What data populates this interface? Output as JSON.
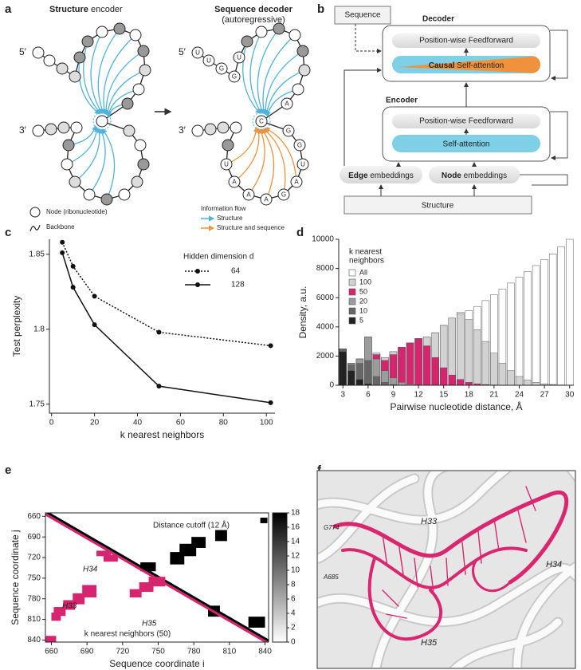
{
  "panel_labels": [
    "a",
    "b",
    "c",
    "d",
    "e",
    "f"
  ],
  "panel_a": {
    "encoder_title": {
      "bold": "Structure",
      "rest": " encoder"
    },
    "decoder_title": "Sequence decoder",
    "decoder_subtitle": "(autoregressive)",
    "five_prime": "5′",
    "three_prime": "3′",
    "nucleotides": [
      "U",
      "U",
      "G",
      "G",
      "U",
      "A",
      "C",
      "G",
      "G",
      "U",
      "A",
      "G",
      "A",
      "A",
      "A",
      "U"
    ],
    "legend": {
      "node": "Node (ribonucleotide)",
      "backbone": "Backbone",
      "flow_title": "Information flow",
      "flow_structure": "Structure",
      "flow_both": "Structure and sequence"
    }
  },
  "panel_b": {
    "sequence": "Sequence",
    "decoder": "Decoder",
    "decoder_ff": "Position-wise Feedforward",
    "decoder_attention": {
      "bold": "Causal",
      "rest": " Self-attention"
    },
    "encoder": "Encoder",
    "encoder_ff": "Position-wise Feedforward",
    "encoder_attention": "Self-attention",
    "edge": {
      "bold": "Edge",
      "rest": " embeddings"
    },
    "node": {
      "bold": "Node",
      "rest": " embeddings"
    },
    "structure": "Structure"
  },
  "chart_data": [
    {
      "type": "line",
      "xlabel": "k nearest neighbors",
      "ylabel": "Test perplexity",
      "legend_title": "Hidden dimension d",
      "x": [
        5,
        10,
        20,
        50,
        102
      ],
      "series": [
        {
          "name": "64",
          "color": "#111111",
          "linestyle": "dotted",
          "values": [
            1.858,
            1.842,
            1.822,
            1.798,
            1.789
          ]
        },
        {
          "name": "128",
          "color": "#111111",
          "linestyle": "solid",
          "values": [
            1.851,
            1.828,
            1.803,
            1.762,
            1.751
          ]
        }
      ],
      "xlim": [
        -1,
        104
      ],
      "ylim": [
        1.744,
        1.86
      ],
      "xticks": [
        0,
        20,
        40,
        60,
        80,
        100
      ],
      "yticks": [
        1.75,
        1.8,
        1.85
      ]
    },
    {
      "type": "histogram",
      "xlabel": "Pairwise nucleotide distance, Å",
      "ylabel": "Density, a.u.",
      "legend_title": [
        "k nearest",
        "neighbors"
      ],
      "bins": [
        2.5,
        3.5,
        4.5,
        5.5,
        6.5,
        7.5,
        8.5,
        9.5,
        10.5,
        11.5,
        12.5,
        13.5,
        14.5,
        15.5,
        16.5,
        17.5,
        18.5,
        19.5,
        20.5,
        21.5,
        22.5,
        23.5,
        24.5,
        25.5,
        26.5,
        27.5,
        28.5,
        29.5,
        30.5
      ],
      "series": [
        {
          "name": "All",
          "color": "#ffffff",
          "values": [
            2500,
            1500,
            1800,
            3300,
            2200,
            1900,
            2300,
            2600,
            2900,
            3200,
            3300,
            3600,
            4100,
            4600,
            5000,
            5100,
            5400,
            5800,
            6200,
            6600,
            7000,
            7400,
            7800,
            8200,
            8600,
            9000,
            9500,
            10000
          ]
        },
        {
          "name": "100",
          "color": "#d2d2d2",
          "values": [
            2500,
            1500,
            1800,
            3300,
            2200,
            1900,
            2300,
            2600,
            2900,
            3200,
            3300,
            3600,
            4100,
            4600,
            4900,
            4500,
            3800,
            3000,
            2200,
            1500,
            1000,
            600,
            350,
            200,
            100,
            50,
            20,
            10
          ]
        },
        {
          "name": "50",
          "color": "#d6246e",
          "values": [
            2500,
            1500,
            1800,
            3300,
            2100,
            1700,
            2100,
            2600,
            2900,
            3200,
            2700,
            1900,
            1200,
            700,
            400,
            200,
            100,
            50,
            20,
            0,
            0,
            0,
            0,
            0,
            0,
            0,
            0,
            0
          ]
        },
        {
          "name": "20",
          "color": "#9c9c9c",
          "values": [
            2500,
            1500,
            1800,
            3300,
            1800,
            1000,
            500,
            200,
            80,
            30,
            0,
            0,
            0,
            0,
            0,
            0,
            0,
            0,
            0,
            0,
            0,
            0,
            0,
            0,
            0,
            0,
            0,
            0
          ]
        },
        {
          "name": "10",
          "color": "#666666",
          "values": [
            2500,
            1400,
            1500,
            1700,
            600,
            200,
            50,
            0,
            0,
            0,
            0,
            0,
            0,
            0,
            0,
            0,
            0,
            0,
            0,
            0,
            0,
            0,
            0,
            0,
            0,
            0,
            0,
            0
          ]
        },
        {
          "name": "5",
          "color": "#222222",
          "values": [
            2300,
            1000,
            400,
            100,
            20,
            0,
            0,
            0,
            0,
            0,
            0,
            0,
            0,
            0,
            0,
            0,
            0,
            0,
            0,
            0,
            0,
            0,
            0,
            0,
            0,
            0,
            0,
            0
          ]
        }
      ],
      "xlim": [
        2.5,
        30.5
      ],
      "ylim": [
        0,
        10000
      ],
      "xticks": [
        3,
        6,
        9,
        12,
        15,
        18,
        21,
        24,
        27,
        30
      ],
      "yticks": [
        0,
        2000,
        4000,
        6000,
        8000,
        10000
      ]
    },
    {
      "type": "contact_map",
      "xlabel": "Sequence coordinate i",
      "ylabel": "Sequence coordinate j",
      "annotations": [
        "H34",
        "H33",
        "H35"
      ],
      "distance_cutoff": {
        "label": "Distance cutoff (12 Å)",
        "color": "#000000",
        "band": [
          0,
          4
        ],
        "regions": [
          [
            760,
            772,
            712,
            730
          ],
          [
            768,
            782,
            700,
            718
          ],
          [
            778,
            790,
            690,
            706
          ],
          [
            798,
            808,
            680,
            696
          ],
          [
            836,
            842,
            662,
            670
          ],
          [
            735,
            748,
            727,
            740
          ],
          [
            792,
            802,
            790,
            806
          ],
          [
            826,
            840,
            806,
            822
          ]
        ]
      },
      "knn": {
        "label": "k nearest neighbors (50)",
        "color": "#d6246e",
        "band": [
          0,
          4
        ],
        "regions": [
          [
            698,
            710,
            710,
            718
          ],
          [
            704,
            716,
            716,
            726
          ],
          [
            660,
            668,
            800,
            812
          ],
          [
            662,
            672,
            792,
            805
          ],
          [
            670,
            680,
            782,
            796
          ],
          [
            678,
            688,
            772,
            788
          ],
          [
            686,
            698,
            760,
            778
          ],
          [
            726,
            736,
            766,
            778
          ],
          [
            734,
            746,
            756,
            770
          ],
          [
            742,
            756,
            748,
            762
          ],
          [
            655,
            664,
            834,
            843
          ]
        ]
      },
      "colorbar": {
        "lim": [
          0,
          18
        ],
        "ticks": [
          0,
          2,
          4,
          6,
          8,
          10,
          12,
          14,
          16,
          18
        ]
      },
      "xlim": [
        655,
        843
      ],
      "ylim": [
        655,
        843
      ],
      "xticks": [
        660,
        690,
        720,
        750,
        780,
        810,
        840
      ],
      "yticks": [
        660,
        690,
        720,
        750,
        780,
        810,
        840
      ]
    }
  ],
  "panel_f": {
    "labels": [
      "G774",
      "H33",
      "A685",
      "H34",
      "H35"
    ]
  }
}
